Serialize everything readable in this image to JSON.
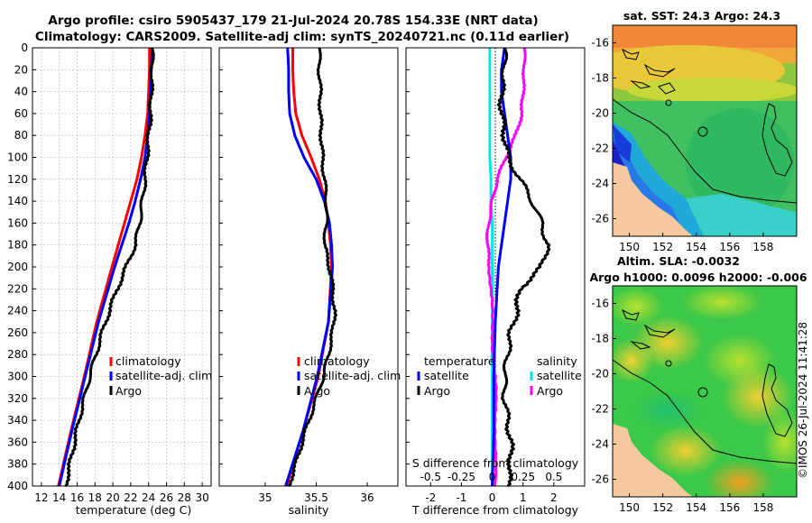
{
  "header": {
    "title_line1": "Argo profile: csiro 5905437_179 21-Jul-2024 20.78S 154.33E (NRT data)",
    "title_line2": "Climatology: CARS2009. Satellite-adj clim: synTS_20240721.nc (0.11d earlier)"
  },
  "copyright": "©IMOS 26-Jul-2024 11:41:28",
  "chart_data": [
    {
      "type": "line",
      "name": "temperature-profile",
      "xlabel": "temperature (deg C)",
      "ylabel": "",
      "xlim": [
        11,
        31
      ],
      "ylim": [
        400,
        0
      ],
      "x_ticks": [
        "12",
        "14",
        "16",
        "18",
        "20",
        "22",
        "24",
        "26",
        "28",
        "30"
      ],
      "y_ticks": [
        "0",
        "20",
        "40",
        "60",
        "80",
        "100",
        "120",
        "140",
        "160",
        "180",
        "200",
        "220",
        "240",
        "260",
        "280",
        "300",
        "320",
        "340",
        "360",
        "380",
        "400"
      ],
      "grid": true,
      "legend": [
        "climatology",
        "satellite-adj. clim",
        "Argo"
      ],
      "series": [
        {
          "name": "climatology",
          "color": "#ff0000",
          "depth": [
            0,
            20,
            40,
            60,
            80,
            100,
            120,
            140,
            160,
            180,
            200,
            250,
            300,
            350,
            400
          ],
          "values": [
            24.1,
            24.1,
            24.0,
            23.9,
            23.6,
            23.2,
            22.7,
            22.0,
            21.3,
            20.6,
            19.9,
            18.2,
            16.8,
            15.3,
            13.9
          ]
        },
        {
          "name": "satellite-adj. clim",
          "color": "#0000ff",
          "depth": [
            0,
            20,
            40,
            60,
            80,
            100,
            120,
            140,
            160,
            180,
            200,
            250,
            300,
            350,
            400
          ],
          "values": [
            24.4,
            24.3,
            24.2,
            24.1,
            23.9,
            23.6,
            23.1,
            22.5,
            21.8,
            21.0,
            20.2,
            18.4,
            16.9,
            15.4,
            14.0
          ]
        },
        {
          "name": "Argo",
          "color": "#000000",
          "depth": [
            0,
            20,
            40,
            60,
            80,
            100,
            120,
            140,
            160,
            180,
            200,
            220,
            240,
            260,
            280,
            300,
            320,
            340,
            360,
            380,
            400
          ],
          "values": [
            24.4,
            24.4,
            24.3,
            24.2,
            24.0,
            23.8,
            23.6,
            23.3,
            23.0,
            22.5,
            21.5,
            20.5,
            19.6,
            18.8,
            18.1,
            17.4,
            16.8,
            16.2,
            15.7,
            15.2,
            14.7
          ]
        }
      ]
    },
    {
      "type": "line",
      "name": "salinity-profile",
      "xlabel": "salinity",
      "xlim": [
        34.55,
        36.3
      ],
      "ylim": [
        400,
        0
      ],
      "x_ticks": [
        "35",
        "35.5",
        "36"
      ],
      "grid": false,
      "legend": [
        "climatology",
        "satellite-adj. clim",
        "Argo"
      ],
      "series": [
        {
          "name": "climatology",
          "color": "#ff0000",
          "depth": [
            0,
            20,
            40,
            60,
            80,
            100,
            120,
            140,
            160,
            180,
            200,
            250,
            300,
            350,
            400
          ],
          "values": [
            35.27,
            35.27,
            35.28,
            35.3,
            35.36,
            35.45,
            35.53,
            35.59,
            35.62,
            35.64,
            35.65,
            35.62,
            35.52,
            35.37,
            35.21
          ]
        },
        {
          "name": "satellite-adj. clim",
          "color": "#0000ff",
          "depth": [
            0,
            20,
            40,
            60,
            80,
            100,
            120,
            140,
            160,
            180,
            200,
            250,
            300,
            350,
            400
          ],
          "values": [
            35.22,
            35.23,
            35.23,
            35.24,
            35.29,
            35.38,
            35.5,
            35.58,
            35.63,
            35.65,
            35.66,
            35.62,
            35.51,
            35.37,
            35.2
          ]
        },
        {
          "name": "Argo",
          "color": "#000000",
          "depth": [
            0,
            20,
            40,
            60,
            80,
            100,
            120,
            140,
            160,
            180,
            200,
            220,
            240,
            260,
            280,
            300,
            320,
            340,
            360,
            380,
            400
          ],
          "values": [
            35.53,
            35.53,
            35.54,
            35.54,
            35.55,
            35.56,
            35.58,
            35.6,
            35.6,
            35.58,
            35.63,
            35.66,
            35.68,
            35.66,
            35.62,
            35.57,
            35.5,
            35.43,
            35.36,
            35.3,
            35.23
          ]
        }
      ]
    },
    {
      "type": "line",
      "name": "difference-profile",
      "xlabel": "T difference from climatology",
      "x2label": "S difference from climatology",
      "xlim": [
        -2.8,
        3.0
      ],
      "x2lim": [
        -0.7,
        0.75
      ],
      "ylim": [
        400,
        0
      ],
      "x_ticks": [
        "-2",
        "-1",
        "0",
        "1",
        "2"
      ],
      "x2_ticks": [
        "-0.5",
        "-0.25",
        "0",
        "0.25",
        "0.5"
      ],
      "legend_temperature": {
        "title": "temperature",
        "items": [
          "satellite",
          "Argo"
        ]
      },
      "legend_salinity": {
        "title": "salinity",
        "items": [
          "satellite",
          "Argo"
        ]
      },
      "series": [
        {
          "name": "temperature satellite",
          "color": "#0000ff",
          "axis": "T",
          "depth": [
            0,
            20,
            40,
            60,
            80,
            100,
            120,
            140,
            160,
            180,
            200,
            250,
            300,
            350,
            400
          ],
          "values": [
            0.4,
            0.3,
            0.3,
            0.4,
            0.5,
            0.6,
            0.6,
            0.5,
            0.4,
            0.3,
            0.2,
            0.1,
            0.05,
            0.05,
            0.0
          ]
        },
        {
          "name": "temperature Argo",
          "color": "#000000",
          "axis": "T",
          "depth": [
            0,
            20,
            40,
            60,
            80,
            100,
            120,
            140,
            160,
            180,
            200,
            220,
            240,
            260,
            280,
            300,
            320,
            340,
            360,
            380,
            400
          ],
          "values": [
            0.4,
            0.4,
            0.3,
            0.3,
            0.4,
            0.5,
            0.9,
            1.3,
            1.6,
            1.8,
            1.6,
            0.9,
            0.8,
            0.6,
            0.5,
            0.4,
            0.4,
            0.5,
            0.6,
            0.6,
            0.5
          ]
        },
        {
          "name": "salinity satellite",
          "color": "#00e5e5",
          "axis": "S",
          "depth": [
            0,
            20,
            40,
            60,
            80,
            100,
            120,
            140,
            160,
            180,
            200,
            250,
            300,
            350,
            400
          ],
          "values": [
            -0.02,
            -0.02,
            -0.02,
            -0.02,
            -0.02,
            -0.02,
            -0.01,
            -0.01,
            0.0,
            0.0,
            0.0,
            0.0,
            0.0,
            0.0,
            0.0
          ]
        },
        {
          "name": "salinity Argo",
          "color": "#ff00ff",
          "axis": "S",
          "depth": [
            0,
            20,
            40,
            60,
            80,
            100,
            120,
            140,
            160,
            180,
            200,
            250,
            300,
            350,
            400
          ],
          "values": [
            0.26,
            0.26,
            0.25,
            0.24,
            0.19,
            0.11,
            0.04,
            0.0,
            -0.03,
            -0.04,
            -0.02,
            0.0,
            0.02,
            0.03,
            0.02
          ]
        }
      ]
    },
    {
      "type": "heatmap",
      "name": "sst-map",
      "title": "sat. SST: 24.3 Argo: 24.3",
      "x_ticks": [
        "150",
        "152",
        "154",
        "156",
        "158"
      ],
      "y_ticks": [
        "-16",
        "-18",
        "-20",
        "-22",
        "-24",
        "-26"
      ],
      "xlim": [
        149,
        160
      ],
      "ylim": [
        -27,
        -15
      ],
      "marker": {
        "lon": 154.33,
        "lat": -20.78
      }
    },
    {
      "type": "heatmap",
      "name": "sla-map",
      "title": "Altim. SLA: -0.0032",
      "subtitle": "Argo h1000: 0.0096 h2000: -0.006",
      "x_ticks": [
        "150",
        "152",
        "154",
        "156",
        "158"
      ],
      "y_ticks": [
        "-16",
        "-18",
        "-20",
        "-22",
        "-24",
        "-26"
      ],
      "xlim": [
        149,
        160
      ],
      "ylim": [
        -27,
        -15
      ],
      "marker": {
        "lon": 154.33,
        "lat": -20.78
      }
    }
  ]
}
